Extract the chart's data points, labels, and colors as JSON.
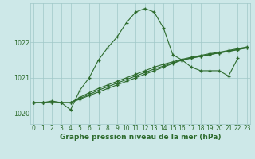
{
  "xlabel": "Graphe pression niveau de la mer (hPa)",
  "x_labels": [
    "0",
    "1",
    "2",
    "3",
    "4",
    "5",
    "6",
    "7",
    "8",
    "9",
    "10",
    "11",
    "12",
    "13",
    "14",
    "15",
    "16",
    "17",
    "18",
    "19",
    "20",
    "21",
    "22",
    "23"
  ],
  "ylim": [
    1019.7,
    1023.1
  ],
  "xlim": [
    -0.3,
    23.3
  ],
  "yticks": [
    1020,
    1021,
    1022
  ],
  "background_color": "#cde8e8",
  "grid_color": "#a0c8c8",
  "line_color": "#2d6b2d",
  "line1_x": [
    0,
    1,
    2,
    3,
    4,
    5,
    6,
    7,
    8,
    9,
    10,
    11,
    12,
    13,
    14,
    15,
    16,
    17,
    18,
    19,
    20,
    21,
    22
  ],
  "line1_y": [
    1020.3,
    1020.3,
    1020.35,
    1020.3,
    1020.1,
    1020.65,
    1021.0,
    1021.5,
    1021.85,
    1022.15,
    1022.55,
    1022.85,
    1022.95,
    1022.85,
    1022.4,
    1021.65,
    1021.5,
    1021.3,
    1021.2,
    1021.2,
    1021.2,
    1021.05,
    1021.55
  ],
  "line2_x": [
    0,
    1,
    2,
    3,
    4,
    5,
    6,
    7,
    8,
    9,
    10,
    11,
    12,
    13,
    14,
    15,
    16,
    17,
    18,
    19,
    20,
    21,
    22,
    23
  ],
  "line2_y": [
    1020.3,
    1020.3,
    1020.3,
    1020.3,
    1020.3,
    1020.4,
    1020.5,
    1020.6,
    1020.7,
    1020.8,
    1020.9,
    1021.0,
    1021.1,
    1021.2,
    1021.3,
    1021.4,
    1021.5,
    1021.55,
    1021.6,
    1021.65,
    1021.7,
    1021.75,
    1021.8,
    1021.85
  ],
  "line3_x": [
    0,
    1,
    2,
    3,
    4,
    5,
    6,
    7,
    8,
    9,
    10,
    11,
    12,
    13,
    14,
    15,
    16,
    17,
    18,
    19,
    20,
    21,
    22,
    23
  ],
  "line3_y": [
    1020.3,
    1020.3,
    1020.3,
    1020.3,
    1020.3,
    1020.45,
    1020.58,
    1020.7,
    1020.8,
    1020.9,
    1021.0,
    1021.1,
    1021.2,
    1021.3,
    1021.38,
    1021.45,
    1021.52,
    1021.58,
    1021.63,
    1021.68,
    1021.72,
    1021.77,
    1021.82,
    1021.87
  ],
  "line4_x": [
    0,
    1,
    2,
    3,
    4,
    5,
    6,
    7,
    8,
    9,
    10,
    11,
    12,
    13,
    14,
    15,
    16,
    17,
    18,
    19,
    20,
    21,
    22,
    23
  ],
  "line4_y": [
    1020.3,
    1020.3,
    1020.3,
    1020.3,
    1020.3,
    1020.42,
    1020.53,
    1020.65,
    1020.75,
    1020.85,
    1020.95,
    1021.05,
    1021.15,
    1021.25,
    1021.33,
    1021.42,
    1021.5,
    1021.56,
    1021.61,
    1021.66,
    1021.7,
    1021.74,
    1021.79,
    1021.84
  ],
  "marker": "+",
  "linewidth": 0.8,
  "markersize": 3.5,
  "markeredgewidth": 0.9,
  "tick_fontsize": 5.5,
  "xlabel_fontsize": 6.5
}
